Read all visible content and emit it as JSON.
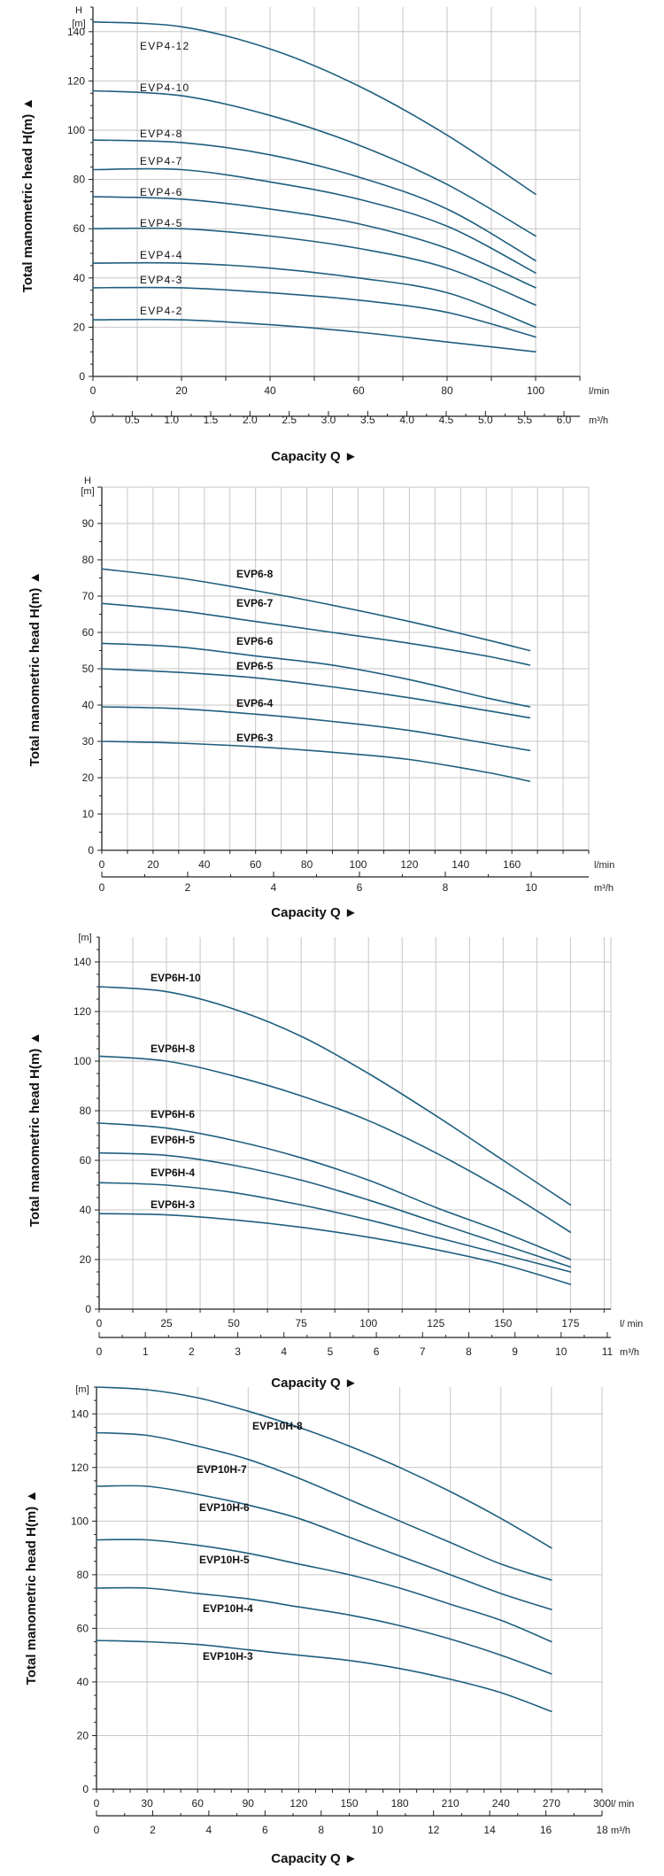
{
  "chart_data": [
    {
      "type": "line",
      "ylabel": "Total manometric head H(m)  ▲",
      "yunit_top": "H",
      "yunit": "[m]",
      "xlabel": "Capacity Q  ►",
      "xunit": "l/min",
      "x2unit": "m³/h",
      "xlim": [
        0,
        110
      ],
      "ylim": [
        0,
        150
      ],
      "grid": true,
      "yticks": [
        "0",
        "20",
        "40",
        "60",
        "80",
        "100",
        "120",
        "140"
      ],
      "xticks": [
        "0",
        "20",
        "40",
        "60",
        "80",
        "100"
      ],
      "x2ticks": [
        "0",
        "0.5",
        "1.0",
        "1.5",
        "2.0",
        "2.5",
        "3.0",
        "3.5",
        "4.0",
        "4.5",
        "5.0",
        "5.5",
        "6.0"
      ],
      "series": [
        {
          "name": "EVP4-12",
          "x": [
            0,
            20,
            40,
            60,
            80,
            100
          ],
          "values": [
            144,
            142,
            133,
            118,
            98,
            74
          ]
        },
        {
          "name": "EVP4-10",
          "x": [
            0,
            20,
            40,
            60,
            80,
            100
          ],
          "values": [
            116,
            114,
            106,
            94,
            78,
            57
          ]
        },
        {
          "name": "EVP4-8",
          "x": [
            0,
            20,
            40,
            60,
            80,
            100
          ],
          "values": [
            96,
            95,
            90,
            81,
            68,
            47
          ]
        },
        {
          "name": "EVP4-7",
          "x": [
            0,
            20,
            40,
            60,
            80,
            100
          ],
          "values": [
            84,
            84,
            79,
            72,
            61,
            42
          ]
        },
        {
          "name": "EVP4-6",
          "x": [
            0,
            20,
            40,
            60,
            80,
            100
          ],
          "values": [
            73,
            72,
            68,
            62,
            52,
            36
          ]
        },
        {
          "name": "EVP4-5",
          "x": [
            0,
            20,
            40,
            60,
            80,
            100
          ],
          "values": [
            60,
            60,
            57,
            52,
            44,
            29
          ]
        },
        {
          "name": "EVP4-4",
          "x": [
            0,
            20,
            40,
            60,
            80,
            100
          ],
          "values": [
            46,
            46,
            44,
            40,
            34,
            20
          ]
        },
        {
          "name": "EVP4-3",
          "x": [
            0,
            20,
            40,
            60,
            80,
            100
          ],
          "values": [
            36,
            36,
            34,
            31,
            26,
            16
          ]
        },
        {
          "name": "EVP4-2",
          "x": [
            0,
            20,
            40,
            60,
            80,
            100
          ],
          "values": [
            23,
            23,
            21,
            18,
            14,
            10
          ]
        }
      ]
    },
    {
      "type": "line",
      "ylabel": "Total manometric head H(m)  ▲",
      "yunit_top": "H",
      "yunit": "[m]",
      "xlabel": "Capacity Q  ►",
      "xunit": "l/min",
      "x2unit": "m³/h",
      "xlim": [
        0,
        190
      ],
      "ylim": [
        0,
        100
      ],
      "grid": true,
      "yticks": [
        "0",
        "10",
        "20",
        "30",
        "40",
        "50",
        "60",
        "70",
        "80",
        "90"
      ],
      "xticks": [
        "0",
        "20",
        "40",
        "60",
        "80",
        "100",
        "120",
        "140",
        "160"
      ],
      "x2ticks": [
        "0",
        "2",
        "4",
        "6",
        "8",
        "10"
      ],
      "series": [
        {
          "name": "EVP6-8",
          "x": [
            0,
            30,
            60,
            90,
            120,
            150,
            167
          ],
          "values": [
            77.5,
            75,
            71.5,
            67.5,
            63,
            58,
            55
          ]
        },
        {
          "name": "EVP6-7",
          "x": [
            0,
            30,
            60,
            90,
            120,
            150,
            167
          ],
          "values": [
            68,
            66,
            63,
            60,
            57,
            53.5,
            51
          ]
        },
        {
          "name": "EVP6-6",
          "x": [
            0,
            30,
            60,
            90,
            120,
            150,
            167
          ],
          "values": [
            57,
            56,
            53.5,
            51,
            47,
            42,
            39.5
          ]
        },
        {
          "name": "EVP6-5",
          "x": [
            0,
            30,
            60,
            90,
            120,
            150,
            167
          ],
          "values": [
            50,
            49,
            47.5,
            45,
            42,
            38.5,
            36.5
          ]
        },
        {
          "name": "EVP6-4",
          "x": [
            0,
            30,
            60,
            90,
            120,
            150,
            167
          ],
          "values": [
            39.5,
            39,
            37.5,
            35.5,
            33,
            29.5,
            27.5
          ]
        },
        {
          "name": "EVP6-3",
          "x": [
            0,
            30,
            60,
            90,
            120,
            150,
            167
          ],
          "values": [
            30,
            29.5,
            28.5,
            27,
            25,
            21.5,
            19
          ]
        }
      ]
    },
    {
      "type": "line",
      "ylabel": "Total manometric head H(m)  ▲",
      "yunit_top": "",
      "yunit": "[m]",
      "xlabel": "Capacity Q  ►",
      "xunit": "l/ min",
      "x2unit": "m³/h",
      "xlim": [
        0,
        190
      ],
      "ylim": [
        0,
        150
      ],
      "grid": true,
      "yticks": [
        "0",
        "20",
        "40",
        "60",
        "80",
        "100",
        "120",
        "140"
      ],
      "xticks": [
        "0",
        "25",
        "50",
        "75",
        "100",
        "125",
        "150",
        "175"
      ],
      "x2ticks": [
        "0",
        "1",
        "2",
        "3",
        "4",
        "5",
        "6",
        "7",
        "8",
        "9",
        "10",
        "11"
      ],
      "series": [
        {
          "name": "EVP6H-10",
          "x": [
            0,
            25,
            50,
            75,
            100,
            125,
            150,
            175
          ],
          "values": [
            130,
            128,
            121,
            110,
            95,
            78,
            60,
            42
          ]
        },
        {
          "name": "EVP6H-8",
          "x": [
            0,
            25,
            50,
            75,
            100,
            125,
            150,
            175
          ],
          "values": [
            102,
            100,
            94,
            86,
            76,
            63,
            48,
            31
          ]
        },
        {
          "name": "EVP6H-6",
          "x": [
            0,
            25,
            50,
            75,
            100,
            125,
            150,
            175
          ],
          "values": [
            75,
            73,
            68,
            61,
            52,
            41,
            31,
            20
          ]
        },
        {
          "name": "EVP6H-5",
          "x": [
            0,
            25,
            50,
            75,
            100,
            125,
            150,
            175
          ],
          "values": [
            63,
            62,
            58,
            52,
            44,
            35,
            26,
            17
          ]
        },
        {
          "name": "EVP6H-4",
          "x": [
            0,
            25,
            50,
            75,
            100,
            125,
            150,
            175
          ],
          "values": [
            51,
            50,
            47,
            42,
            36,
            29,
            22,
            15
          ]
        },
        {
          "name": "EVP6H-3",
          "x": [
            0,
            25,
            50,
            75,
            100,
            125,
            150,
            175
          ],
          "values": [
            38.5,
            38,
            36,
            33,
            29,
            24,
            18,
            10
          ]
        }
      ]
    },
    {
      "type": "line",
      "ylabel": "Total manometric head H(m)  ▲",
      "yunit_top": "",
      "yunit": "[m]",
      "xlabel": "Capacity Q  ►",
      "xunit": "l/ min",
      "x2unit": "m³/h",
      "xlim": [
        0,
        300
      ],
      "ylim": [
        0,
        150
      ],
      "grid": true,
      "yticks": [
        "0",
        "20",
        "40",
        "60",
        "80",
        "100",
        "120",
        "140"
      ],
      "xticks": [
        "0",
        "30",
        "60",
        "90",
        "120",
        "150",
        "180",
        "210",
        "240",
        "270",
        "300"
      ],
      "x2ticks": [
        "0",
        "2",
        "4",
        "6",
        "8",
        "10",
        "12",
        "14",
        "16",
        "18"
      ],
      "series": [
        {
          "name": "EVP10H-8",
          "x": [
            0,
            30,
            60,
            90,
            120,
            150,
            180,
            210,
            240,
            270
          ],
          "values": [
            150,
            149,
            146,
            141,
            135,
            128,
            120,
            111,
            101,
            90
          ]
        },
        {
          "name": "EVP10H-7",
          "x": [
            0,
            30,
            60,
            90,
            120,
            150,
            180,
            210,
            240,
            270
          ],
          "values": [
            133,
            132,
            128,
            123,
            116,
            108,
            100,
            92,
            84,
            78
          ]
        },
        {
          "name": "EVP10H-6",
          "x": [
            0,
            30,
            60,
            90,
            120,
            150,
            180,
            210,
            240,
            270
          ],
          "values": [
            113,
            113,
            110,
            106,
            101,
            94,
            87,
            80,
            73,
            67
          ]
        },
        {
          "name": "EVP10H-5",
          "x": [
            0,
            30,
            60,
            90,
            120,
            150,
            180,
            210,
            240,
            270
          ],
          "values": [
            93,
            93,
            91,
            88,
            84,
            80,
            75,
            69,
            63,
            55
          ]
        },
        {
          "name": "EVP10H-4",
          "x": [
            0,
            30,
            60,
            90,
            120,
            150,
            180,
            210,
            240,
            270
          ],
          "values": [
            75,
            75,
            73,
            71,
            68,
            65,
            61,
            56,
            50,
            43
          ]
        },
        {
          "name": "EVP10H-3",
          "x": [
            0,
            30,
            60,
            90,
            120,
            150,
            180,
            210,
            240,
            270
          ],
          "values": [
            55.5,
            55,
            54,
            52,
            50,
            48,
            45,
            41,
            36,
            29
          ]
        }
      ]
    }
  ]
}
